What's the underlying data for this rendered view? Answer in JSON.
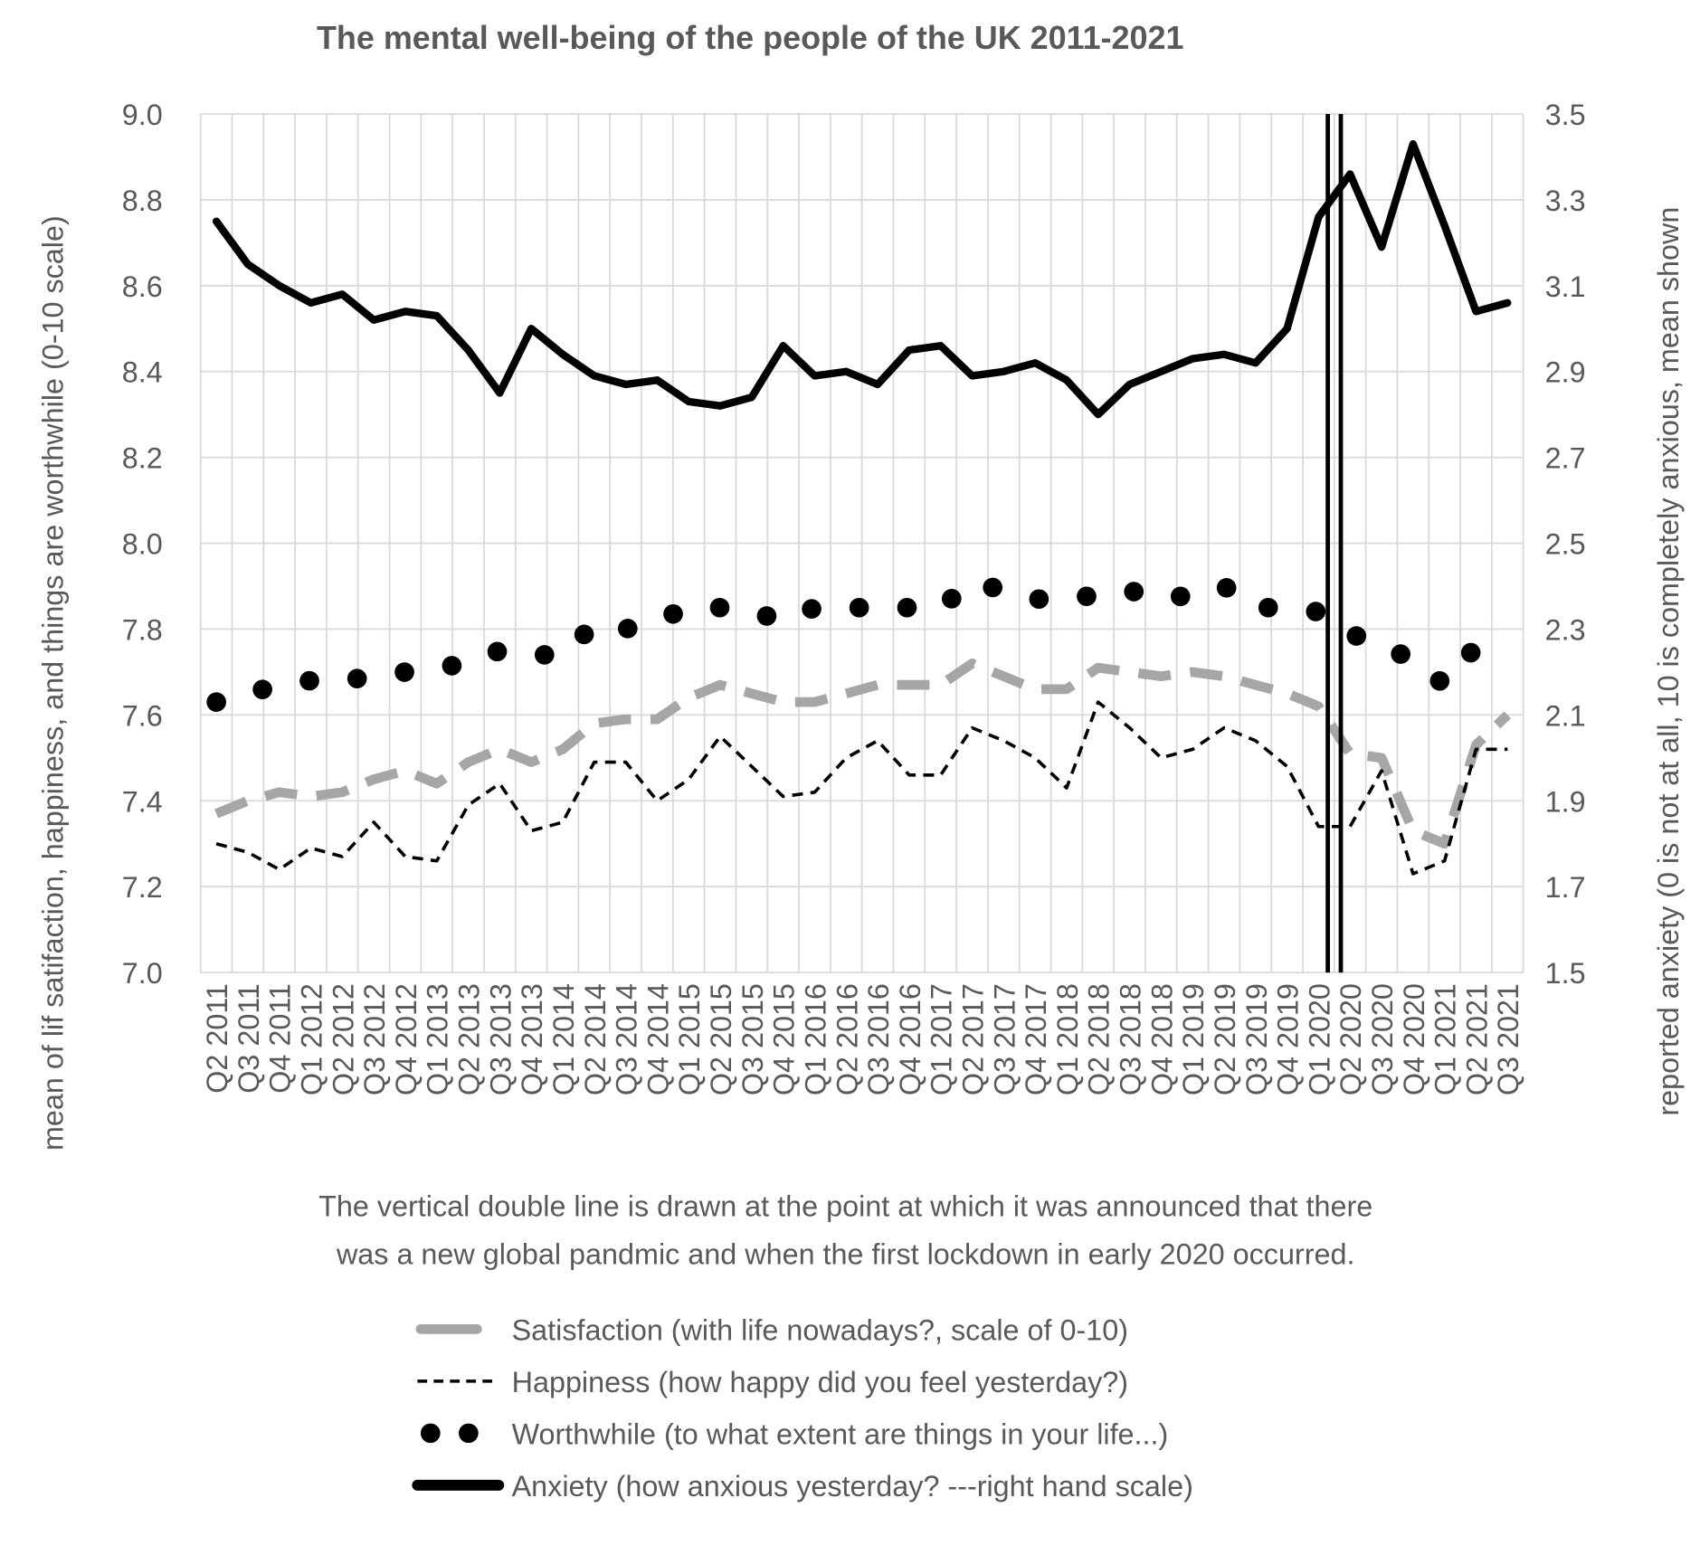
{
  "chart_data": {
    "type": "line",
    "title": "The mental well-being of the people of the UK 2011-2021",
    "ylabel": "mean of lif satifaction, happiness, and things are worthwhile (0-10 scale)",
    "y2label": "reported anxiety (0 is not at all, 10 is completely anxious, mean shown",
    "ylim": [
      7.0,
      9.0
    ],
    "y2lim": [
      1.5,
      3.5
    ],
    "yticks": [
      "7.0",
      "7.2",
      "7.4",
      "7.6",
      "7.8",
      "8.0",
      "8.2",
      "8.4",
      "8.6",
      "8.8",
      "9.0"
    ],
    "y2ticks": [
      "1.5",
      "1.7",
      "1.9",
      "2.1",
      "2.3",
      "2.5",
      "2.7",
      "2.9",
      "3.1",
      "3.3",
      "3.5"
    ],
    "grid": true,
    "categories": [
      "Q2 2011",
      "Q3 2011",
      "Q4 2011",
      "Q1 2012",
      "Q2 2012",
      "Q3 2012",
      "Q4 2012",
      "Q1 2013",
      "Q2 2013",
      "Q3 2013",
      "Q4 2013",
      "Q1 2014",
      "Q2 2014",
      "Q3 2014",
      "Q4 2014",
      "Q1 2015",
      "Q2 2015",
      "Q3 2015",
      "Q4 2015",
      "Q1 2016",
      "Q2 2016",
      "Q3 2016",
      "Q4 2016",
      "Q1 2017",
      "Q2 2017",
      "Q3 2017",
      "Q4 2017",
      "Q1 2018",
      "Q2 2018",
      "Q3 2018",
      "Q4 2018",
      "Q1 2019",
      "Q2 2019",
      "Q3 2019",
      "Q4 2019",
      "Q1 2020",
      "Q2 2020",
      "Q3 2020",
      "Q4 2020",
      "Q1 2021",
      "Q2 2021",
      "Q3 2021"
    ],
    "series": [
      {
        "name": "Satisfaction (with life nowadays?, scale of 0-10)",
        "axis": "left",
        "style": "dash",
        "color": "#a6a6a6",
        "values": [
          7.37,
          7.4,
          7.42,
          7.41,
          7.42,
          7.45,
          7.47,
          7.44,
          7.49,
          7.52,
          7.49,
          7.52,
          7.58,
          7.59,
          7.59,
          7.64,
          7.67,
          7.65,
          7.63,
          7.63,
          7.65,
          7.67,
          7.67,
          7.67,
          7.72,
          7.69,
          7.66,
          7.66,
          7.71,
          7.7,
          7.69,
          7.7,
          7.69,
          7.67,
          7.65,
          7.62,
          7.51,
          7.5,
          7.33,
          7.3,
          7.53,
          7.6
        ]
      },
      {
        "name": "Happiness (how happy did you feel yesterday?)",
        "axis": "left",
        "style": "shortdash",
        "color": "#000000",
        "values": [
          7.3,
          7.28,
          7.24,
          7.29,
          7.27,
          7.35,
          7.27,
          7.26,
          7.39,
          7.44,
          7.33,
          7.35,
          7.49,
          7.49,
          7.4,
          7.45,
          7.55,
          7.48,
          7.41,
          7.42,
          7.5,
          7.54,
          7.46,
          7.46,
          7.57,
          7.54,
          7.5,
          7.43,
          7.63,
          7.57,
          7.5,
          7.52,
          7.57,
          7.54,
          7.48,
          7.34,
          7.34,
          7.47,
          7.23,
          7.26,
          7.52,
          7.52
        ]
      },
      {
        "name": "Worthwhile (to what extent are things in your life...)",
        "axis": "left",
        "style": "dot",
        "color": "#000000",
        "values": [
          7.63,
          7.65,
          7.67,
          7.68,
          7.68,
          7.69,
          7.7,
          7.71,
          7.72,
          7.75,
          7.74,
          7.74,
          7.81,
          7.8,
          7.82,
          7.85,
          7.85,
          7.84,
          7.82,
          7.85,
          7.85,
          7.85,
          7.85,
          7.85,
          7.91,
          7.89,
          7.87,
          7.87,
          7.88,
          7.89,
          7.87,
          7.88,
          7.9,
          7.85,
          7.85,
          7.84,
          7.79,
          7.76,
          7.73,
          7.67,
          7.76,
          null
        ]
      },
      {
        "name": "Anxiety (how anxious yesterday? ---right hand scale)",
        "axis": "right",
        "style": "solid",
        "color": "#000000",
        "values": [
          3.25,
          3.15,
          3.1,
          3.06,
          3.08,
          3.02,
          3.04,
          3.03,
          2.95,
          2.85,
          3.0,
          2.94,
          2.89,
          2.87,
          2.88,
          2.83,
          2.82,
          2.84,
          2.96,
          2.89,
          2.9,
          2.87,
          2.95,
          2.96,
          2.89,
          2.9,
          2.92,
          2.88,
          2.8,
          2.87,
          2.9,
          2.93,
          2.94,
          2.92,
          3.0,
          3.26,
          3.36,
          3.19,
          3.43,
          3.24,
          3.04,
          3.06
        ]
      }
    ],
    "marker_between": [
      "Q1 2020",
      "Q2 2020"
    ],
    "annotation": "The vertical  double line is drawn at the point at which it was announced that there was a new global pandmic and when the first lockdown in early 2020 occurred.",
    "annotation_lines": [
      "The vertical  double line is drawn at the point at which it was announced that there",
      "was a new global pandmic and when the first lockdown in early 2020 occurred."
    ],
    "legend_position": "bottom"
  }
}
